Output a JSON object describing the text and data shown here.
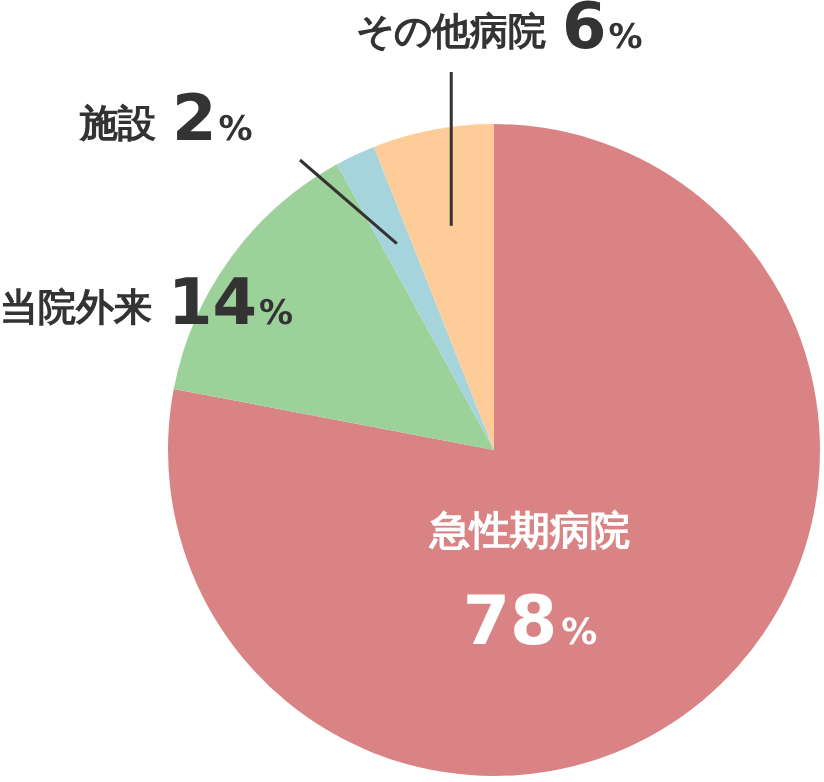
{
  "chart_data": {
    "type": "pie",
    "categories": [
      "急性期病院",
      "当院外来",
      "施設",
      "その他病院"
    ],
    "values": [
      78,
      14,
      2,
      6
    ],
    "colors": [
      "#d98385",
      "#9dd19a",
      "#a6d4dc",
      "#fdcc98"
    ],
    "value_labels": [
      "78%",
      "14%",
      "2%",
      "6%"
    ],
    "legend": false
  }
}
